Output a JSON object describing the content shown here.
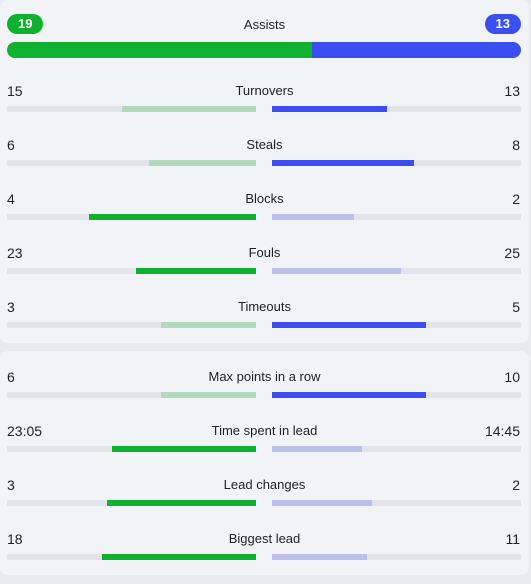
{
  "colors": {
    "home_strong": "#0eb22f",
    "home_weak": "#b3d9bd",
    "away_strong": "#3b4ff0",
    "away_weak": "#b9c0ec",
    "track": "#e2e4e9"
  },
  "assists": {
    "label": "Assists",
    "home": "19",
    "away": "13"
  },
  "group1": [
    {
      "label": "Turnovers",
      "home": "15",
      "away": "13",
      "home_fill": 0.54,
      "away_fill": 0.46,
      "leader": "away"
    },
    {
      "label": "Steals",
      "home": "6",
      "away": "8",
      "home_fill": 0.43,
      "away_fill": 0.57,
      "leader": "away"
    },
    {
      "label": "Blocks",
      "home": "4",
      "away": "2",
      "home_fill": 0.67,
      "away_fill": 0.33,
      "leader": "home"
    },
    {
      "label": "Fouls",
      "home": "23",
      "away": "25",
      "home_fill": 0.48,
      "away_fill": 0.52,
      "leader": "home"
    },
    {
      "label": "Timeouts",
      "home": "3",
      "away": "5",
      "home_fill": 0.38,
      "away_fill": 0.62,
      "leader": "away"
    }
  ],
  "group2": [
    {
      "label": "Max points in a row",
      "home": "6",
      "away": "10",
      "home_fill": 0.38,
      "away_fill": 0.62,
      "leader": "away"
    },
    {
      "label": "Time spent in lead",
      "home": "23:05",
      "away": "14:45",
      "home_fill": 0.58,
      "away_fill": 0.36,
      "leader": "home"
    },
    {
      "label": "Lead changes",
      "home": "3",
      "away": "2",
      "home_fill": 0.6,
      "away_fill": 0.4,
      "leader": "home"
    },
    {
      "label": "Biggest lead",
      "home": "18",
      "away": "11",
      "home_fill": 0.62,
      "away_fill": 0.38,
      "leader": "home"
    }
  ]
}
